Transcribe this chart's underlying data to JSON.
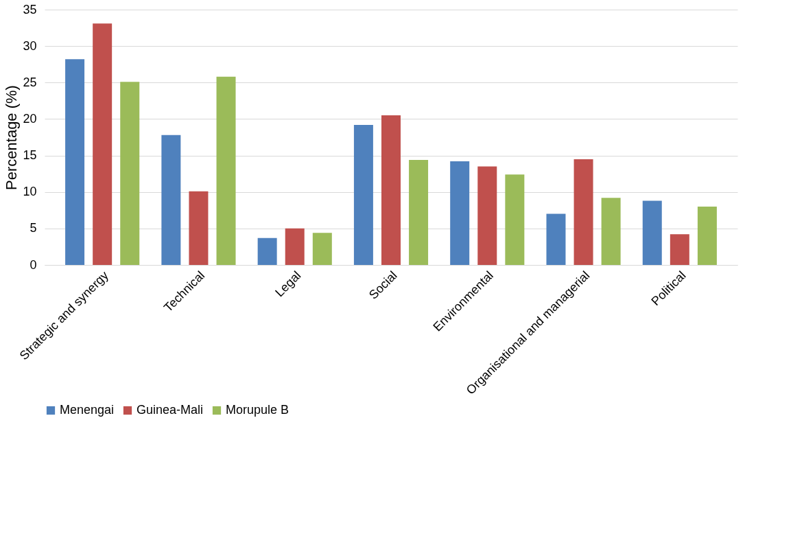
{
  "chart_data": {
    "type": "bar",
    "ylabel": "Percentage (%)",
    "categories": [
      "Strategic and synergy",
      "Technical",
      "Legal",
      "Social",
      "Environmental",
      "Organisational and managerial",
      "Political"
    ],
    "series": [
      {
        "name": "Menengai",
        "color": "#4f81bd",
        "values": [
          28.2,
          17.8,
          3.7,
          19.2,
          14.2,
          7.0,
          8.8
        ]
      },
      {
        "name": "Guinea-Mali",
        "color": "#c0504d",
        "values": [
          33.1,
          10.1,
          5.0,
          20.5,
          13.5,
          14.5,
          4.2
        ]
      },
      {
        "name": "Morupule B",
        "color": "#9bbb59",
        "values": [
          25.1,
          25.8,
          4.4,
          14.4,
          12.4,
          9.2,
          8.0
        ]
      }
    ],
    "ylim": [
      0,
      35
    ],
    "yticks": [
      0,
      5,
      10,
      15,
      20,
      25,
      30,
      35
    ],
    "grid": "y",
    "legend": "bottom"
  }
}
